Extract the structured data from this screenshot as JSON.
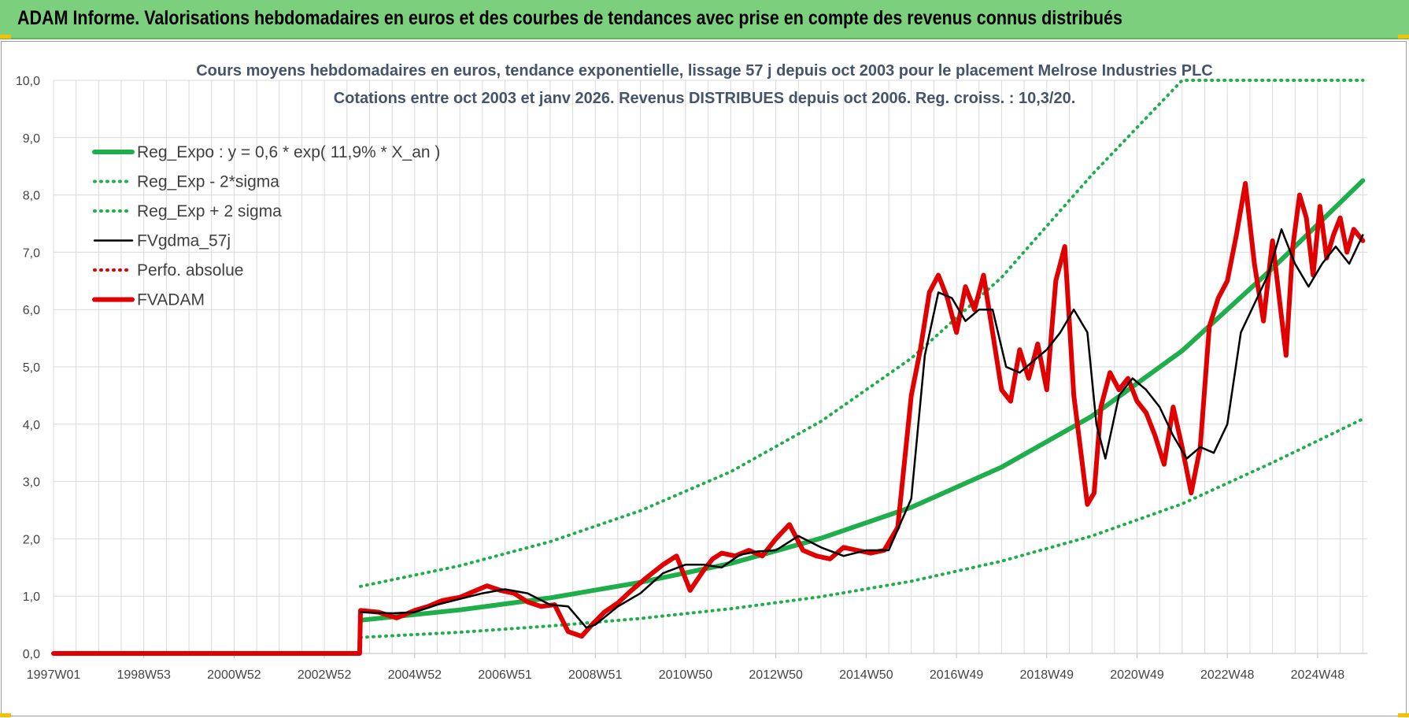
{
  "banner": {
    "title": "ADAM Informe. Valorisations hebdomadaires en euros et des courbes de tendances avec prise en compte des revenus connus distribués"
  },
  "colors": {
    "banner_bg": "#7ccf7c",
    "reg_expo": "#1fae4b",
    "sigma": "#1fae4b",
    "fvgdma": "#000000",
    "perfo": "#e00000",
    "fvadam": "#e00000"
  },
  "chart_data": {
    "type": "line",
    "title": [
      "Cours moyens hebdomadaires en euros, tendance exponentielle, lissage 57 j depuis oct 2003 pour le placement Melrose Industries PLC",
      "Cotations entre oct 2003 et janv 2026. Revenus DISTRIBUES depuis oct 2006. Reg. croiss. : 10,3/20."
    ],
    "x_unit": "year",
    "xlim": [
      1997.0,
      2026.1
    ],
    "ylim": [
      0,
      10
    ],
    "y_ticks": [
      "0,0",
      "1,0",
      "2,0",
      "3,0",
      "4,0",
      "5,0",
      "6,0",
      "7,0",
      "8,0",
      "9,0",
      "10,0"
    ],
    "x_ticks": [
      {
        "label": "1997W01",
        "year": 1997.0
      },
      {
        "label": "1998W53",
        "year": 1999.0
      },
      {
        "label": "2000W52",
        "year": 2001.0
      },
      {
        "label": "2002W52",
        "year": 2003.0
      },
      {
        "label": "2004W52",
        "year": 2005.0
      },
      {
        "label": "2006W51",
        "year": 2007.0
      },
      {
        "label": "2008W51",
        "year": 2009.0
      },
      {
        "label": "2010W50",
        "year": 2011.0
      },
      {
        "label": "2012W50",
        "year": 2013.0
      },
      {
        "label": "2014W50",
        "year": 2015.0
      },
      {
        "label": "2016W49",
        "year": 2017.0
      },
      {
        "label": "2018W49",
        "year": 2019.0
      },
      {
        "label": "2020W49",
        "year": 2021.0
      },
      {
        "label": "2022W48",
        "year": 2023.0
      },
      {
        "label": "2024W48",
        "year": 2025.0
      }
    ],
    "grid": true,
    "legend_position": "top-left",
    "series": [
      {
        "name": "Reg_Expo : y = 0,6 * exp( 11,9% *  X_an )",
        "style": "solid-thick",
        "color": "#1fae4b",
        "x": [
          2003.8,
          2006,
          2008,
          2010,
          2012,
          2014,
          2016,
          2018,
          2020,
          2022,
          2024,
          2026.0
        ],
        "y": [
          0.58,
          0.76,
          0.97,
          1.24,
          1.57,
          2.01,
          2.55,
          3.25,
          4.14,
          5.28,
          6.72,
          8.25
        ]
      },
      {
        "name": "Reg_Exp - 2*sigma",
        "style": "dotted",
        "color": "#1fae4b",
        "x": [
          2003.8,
          2006,
          2008,
          2010,
          2012,
          2014,
          2016,
          2018,
          2020,
          2022,
          2024,
          2026.0
        ],
        "y": [
          0.28,
          0.37,
          0.48,
          0.61,
          0.78,
          0.99,
          1.26,
          1.61,
          2.05,
          2.61,
          3.33,
          4.09
        ]
      },
      {
        "name": "Reg_Exp + 2 sigma",
        "style": "dotted",
        "color": "#1fae4b",
        "x": [
          2003.8,
          2006,
          2008,
          2010,
          2012,
          2014,
          2016,
          2018,
          2020,
          2022,
          2024,
          2026.0
        ],
        "y": [
          1.17,
          1.53,
          1.95,
          2.49,
          3.17,
          4.05,
          5.15,
          6.56,
          8.35,
          10.0,
          10.0,
          10.0
        ]
      },
      {
        "name": "FVgdma_57j",
        "style": "solid-thin",
        "color": "#000000",
        "x": [
          2003.8,
          2004.5,
          2005,
          2005.5,
          2006,
          2006.5,
          2007,
          2007.5,
          2008,
          2008.4,
          2008.8,
          2009,
          2009.5,
          2010,
          2010.5,
          2011,
          2011.4,
          2011.8,
          2012.2,
          2012.6,
          2013,
          2013.5,
          2014,
          2014.5,
          2015,
          2015.5,
          2016,
          2016.3,
          2016.6,
          2016.9,
          2017.2,
          2017.5,
          2017.8,
          2018.1,
          2018.4,
          2018.7,
          2019,
          2019.3,
          2019.6,
          2019.9,
          2020.1,
          2020.3,
          2020.6,
          2020.9,
          2021.2,
          2021.5,
          2021.8,
          2022.1,
          2022.4,
          2022.7,
          2023,
          2023.3,
          2023.6,
          2023.9,
          2024.2,
          2024.5,
          2024.8,
          2025.1,
          2025.4,
          2025.7,
          2026.0
        ],
        "y": [
          0.72,
          0.7,
          0.72,
          0.85,
          0.95,
          1.05,
          1.12,
          1.05,
          0.85,
          0.82,
          0.45,
          0.5,
          0.82,
          1.05,
          1.4,
          1.55,
          1.55,
          1.5,
          1.72,
          1.78,
          1.8,
          2.05,
          1.85,
          1.7,
          1.8,
          1.8,
          2.7,
          5.2,
          6.3,
          6.2,
          5.8,
          6.0,
          6.0,
          5.0,
          4.9,
          5.1,
          5.3,
          5.6,
          6.0,
          5.6,
          4.0,
          3.4,
          4.5,
          4.8,
          4.6,
          4.3,
          3.8,
          3.4,
          3.6,
          3.5,
          4.0,
          5.6,
          6.1,
          6.6,
          7.4,
          6.8,
          6.4,
          6.8,
          7.1,
          6.8,
          7.3
        ]
      },
      {
        "name": "Perfo. absolue",
        "style": "dotted",
        "color": "#e00000",
        "x": [],
        "y": []
      },
      {
        "name": "FVADAM",
        "style": "solid-thick",
        "color": "#e00000",
        "x": [
          1997.0,
          2003.78,
          2003.8,
          2004.2,
          2004.6,
          2005,
          2005.3,
          2005.6,
          2006,
          2006.3,
          2006.6,
          2006.9,
          2007.2,
          2007.5,
          2007.8,
          2008.1,
          2008.4,
          2008.7,
          2008.9,
          2009.2,
          2009.5,
          2009.8,
          2010.1,
          2010.5,
          2010.8,
          2011.1,
          2011.4,
          2011.6,
          2011.8,
          2012.1,
          2012.4,
          2012.7,
          2013,
          2013.3,
          2013.6,
          2013.9,
          2014.2,
          2014.5,
          2014.8,
          2015.1,
          2015.4,
          2015.7,
          2016.0,
          2016.2,
          2016.4,
          2016.6,
          2016.8,
          2017.0,
          2017.2,
          2017.4,
          2017.6,
          2017.8,
          2018.0,
          2018.2,
          2018.4,
          2018.6,
          2018.8,
          2019.0,
          2019.2,
          2019.4,
          2019.6,
          2019.9,
          2020.05,
          2020.2,
          2020.4,
          2020.6,
          2020.8,
          2021.0,
          2021.2,
          2021.4,
          2021.6,
          2021.8,
          2022.0,
          2022.2,
          2022.4,
          2022.6,
          2022.8,
          2023.0,
          2023.2,
          2023.4,
          2023.6,
          2023.8,
          2024.0,
          2024.15,
          2024.3,
          2024.45,
          2024.6,
          2024.75,
          2024.9,
          2025.05,
          2025.2,
          2025.35,
          2025.5,
          2025.65,
          2025.8,
          2026.0
        ],
        "y": [
          0.0,
          0.0,
          0.75,
          0.72,
          0.62,
          0.75,
          0.82,
          0.92,
          0.98,
          1.08,
          1.18,
          1.1,
          1.05,
          0.9,
          0.82,
          0.85,
          0.38,
          0.3,
          0.48,
          0.72,
          0.88,
          1.1,
          1.3,
          1.55,
          1.7,
          1.1,
          1.45,
          1.65,
          1.75,
          1.7,
          1.8,
          1.7,
          2.0,
          2.25,
          1.8,
          1.7,
          1.65,
          1.85,
          1.8,
          1.75,
          1.8,
          2.2,
          4.5,
          5.3,
          6.3,
          6.6,
          6.2,
          5.6,
          6.4,
          6.0,
          6.6,
          5.6,
          4.6,
          4.4,
          5.3,
          4.8,
          5.4,
          4.6,
          6.5,
          7.1,
          4.5,
          2.6,
          2.8,
          4.3,
          4.9,
          4.6,
          4.8,
          4.4,
          4.2,
          3.8,
          3.3,
          4.3,
          3.6,
          2.8,
          3.6,
          5.7,
          6.2,
          6.5,
          7.3,
          8.2,
          6.8,
          5.8,
          7.2,
          6.2,
          5.2,
          7.1,
          8.0,
          7.6,
          6.6,
          7.8,
          6.9,
          7.3,
          7.6,
          7.0,
          7.4,
          7.2
        ]
      }
    ]
  }
}
